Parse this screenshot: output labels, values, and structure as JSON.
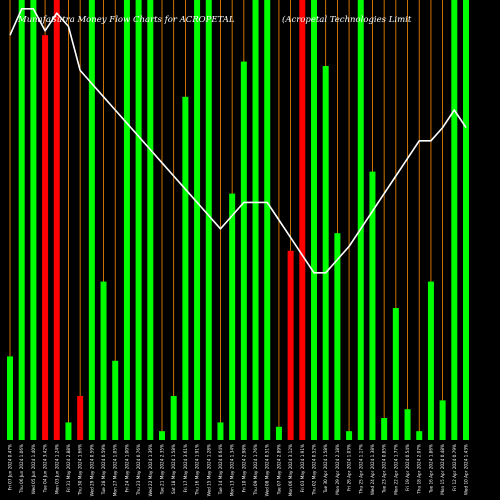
{
  "chart_data": {
    "type": "bar",
    "title": "MunafaSutra  Money Flow  Charts for ACROPETAL",
    "subtitle": "(Acropetal Technologies Limit",
    "colors": {
      "background": "#000000",
      "inflow": "#00ff00",
      "outflow": "#ff0000",
      "separator": "#ff8c00",
      "line": "#ffffff"
    },
    "ylim": [
      0,
      100
    ],
    "categories": [
      "Fri 07 Jun 2024 0.47%",
      "Thu 06 Jun 2024 1.06%",
      "Wed 05 Jun 2024 1.40%",
      "Tue 04 Jun 2024 3.42%",
      "Mon 03 Jun 2024 1.24%",
      "Fri 31 May 2024 2.88%",
      "Thu 30 May 2024 1.66%",
      "Wed 29 May 2024 0.59%",
      "Tue 28 May 2024 0.59%",
      "Mon 27 May 2024 1.05%",
      "Fri 24 May 2024 1.00%",
      "Thu 23 May 2024 0.76%",
      "Wed 22 May 2024 1.36%",
      "Tue 21 May 2024 2.35%",
      "Sat 18 May 2024 1.58%",
      "Fri 17 May 2024 3.61%",
      "Thu 16 May 2024 1.91%",
      "Wed 15 May 2024 1.28%",
      "Tue 14 May 2024 0.64%",
      "Mon 13 May 2024 1.34%",
      "Fri 10 May 2024 2.98%",
      "Thu 09 May 2024 1.76%",
      "Wed 08 May 2024 0.51%",
      "Tue 07 May 2024 2.89%",
      "Mon 06 May 2024 3.12%",
      "Fri 03 May 2024 1.91%",
      "Thu 02 May 2024 0.52%",
      "Tue 30 Apr 2024 1.58%",
      "Mon 29 Apr 2024 2.18%",
      "Fri 26 Apr 2024 1.03%",
      "Thu 25 Apr 2024 1.17%",
      "Wed 24 Apr 2024 1.38%",
      "Tue 23 Apr 2024 0.85%",
      "Mon 22 Apr 2024 1.77%",
      "Fri 19 Apr 2024 0.54%",
      "Thu 18 Apr 2024 2.07%",
      "Tue 16 Apr 2024 1.86%",
      "Mon 15 Apr 2024 0.48%",
      "Fri 12 Apr 2024 0.79%",
      "Wed 10 Apr 2024 1.43%"
    ],
    "values": [
      19,
      100,
      100,
      92,
      100,
      4,
      10,
      100,
      36,
      18,
      100,
      100,
      100,
      2,
      10,
      78,
      100,
      100,
      4,
      56,
      86,
      100,
      100,
      3,
      43,
      100,
      100,
      85,
      47,
      2,
      100,
      61,
      5,
      30,
      7,
      2,
      36,
      9,
      100,
      100
    ],
    "bar_colors": [
      "green",
      "green",
      "green",
      "red",
      "red",
      "green",
      "red",
      "green",
      "green",
      "green",
      "green",
      "green",
      "green",
      "green",
      "green",
      "green",
      "green",
      "green",
      "green",
      "green",
      "green",
      "green",
      "green",
      "green",
      "red",
      "red",
      "green",
      "green",
      "green",
      "green",
      "green",
      "green",
      "green",
      "green",
      "green",
      "green",
      "green",
      "green",
      "green",
      "green"
    ],
    "line_values": [
      92,
      98,
      98,
      93,
      97,
      94,
      84,
      81,
      78,
      75,
      72,
      69,
      66,
      63,
      60,
      57,
      54,
      51,
      48,
      51,
      54,
      54,
      54,
      50,
      46,
      42,
      38,
      38,
      41,
      44,
      48,
      52,
      56,
      60,
      64,
      68,
      68,
      71,
      75,
      71
    ]
  }
}
